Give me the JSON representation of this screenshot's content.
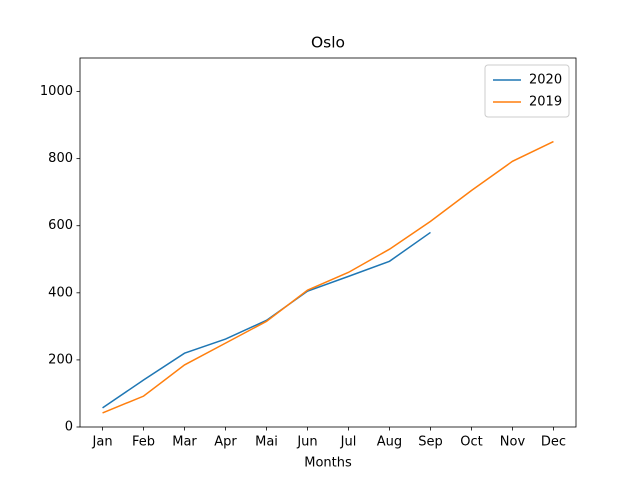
{
  "chart_data": {
    "type": "line",
    "title": "Oslo",
    "xlabel": "Months",
    "categories": [
      "Jan",
      "Feb",
      "Mar",
      "Apr",
      "Mai",
      "Jun",
      "Jul",
      "Aug",
      "Sep",
      "Oct",
      "Nov",
      "Dec"
    ],
    "series": [
      {
        "name": "2020",
        "color": "#1f77b4",
        "values": [
          57,
          140,
          220,
          262,
          318,
          405,
          449,
          494,
          580,
          null,
          null,
          null
        ]
      },
      {
        "name": "2019",
        "color": "#ff7f0e",
        "values": [
          42,
          92,
          185,
          250,
          315,
          408,
          461,
          530,
          613,
          705,
          792,
          851
        ]
      }
    ],
    "ylim": [
      0,
      1100
    ],
    "yticks": [
      0,
      200,
      400,
      600,
      800,
      1000
    ],
    "grid": false,
    "legend": "upper right"
  }
}
